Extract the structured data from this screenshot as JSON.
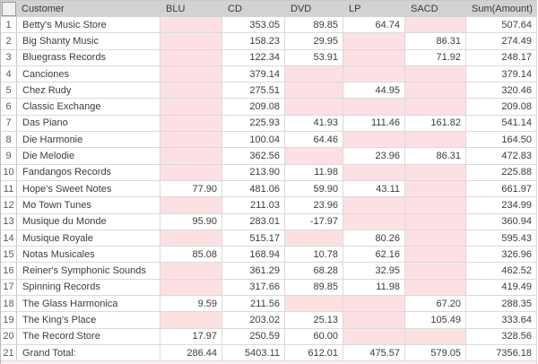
{
  "colors": {
    "header_bg": "#d2d2d2",
    "empty_cell": "#fde0e4",
    "grid_line": "#dadada"
  },
  "table": {
    "corner_label": "",
    "columns": [
      {
        "key": "customer",
        "label": "Customer"
      },
      {
        "key": "blu",
        "label": "BLU"
      },
      {
        "key": "cd",
        "label": "CD"
      },
      {
        "key": "dvd",
        "label": "DVD"
      },
      {
        "key": "lp",
        "label": "LP"
      },
      {
        "key": "sacd",
        "label": "SACD"
      },
      {
        "key": "sum",
        "label": "Sum(Amount)"
      }
    ],
    "rows": [
      {
        "num": "1",
        "customer": "Betty's Music Store",
        "blu": null,
        "cd": "353.05",
        "dvd": "89.85",
        "lp": "64.74",
        "sacd": null,
        "sum": "507.64"
      },
      {
        "num": "2",
        "customer": "Big Shanty Music",
        "blu": null,
        "cd": "158.23",
        "dvd": "29.95",
        "lp": null,
        "sacd": "86.31",
        "sum": "274.49"
      },
      {
        "num": "3",
        "customer": "Bluegrass Records",
        "blu": null,
        "cd": "122.34",
        "dvd": "53.91",
        "lp": null,
        "sacd": "71.92",
        "sum": "248.17"
      },
      {
        "num": "4",
        "customer": "Canciones",
        "blu": null,
        "cd": "379.14",
        "dvd": null,
        "lp": null,
        "sacd": null,
        "sum": "379.14"
      },
      {
        "num": "5",
        "customer": "Chez Rudy",
        "blu": null,
        "cd": "275.51",
        "dvd": null,
        "lp": "44.95",
        "sacd": null,
        "sum": "320.46"
      },
      {
        "num": "6",
        "customer": "Classic Exchange",
        "blu": null,
        "cd": "209.08",
        "dvd": null,
        "lp": null,
        "sacd": null,
        "sum": "209.08"
      },
      {
        "num": "7",
        "customer": "Das Piano",
        "blu": null,
        "cd": "225.93",
        "dvd": "41.93",
        "lp": "111.46",
        "sacd": "161.82",
        "sum": "541.14"
      },
      {
        "num": "8",
        "customer": "Die Harmonie",
        "blu": null,
        "cd": "100.04",
        "dvd": "64.46",
        "lp": null,
        "sacd": null,
        "sum": "164.50"
      },
      {
        "num": "9",
        "customer": "Die Melodie",
        "blu": null,
        "cd": "362.56",
        "dvd": null,
        "lp": "23.96",
        "sacd": "86.31",
        "sum": "472.83"
      },
      {
        "num": "10",
        "customer": "Fandangos Records",
        "blu": null,
        "cd": "213.90",
        "dvd": "11.98",
        "lp": null,
        "sacd": null,
        "sum": "225.88"
      },
      {
        "num": "11",
        "customer": "Hope's Sweet Notes",
        "blu": "77.90",
        "cd": "481.06",
        "dvd": "59.90",
        "lp": "43.11",
        "sacd": null,
        "sum": "661.97"
      },
      {
        "num": "12",
        "customer": "Mo Town Tunes",
        "blu": null,
        "cd": "211.03",
        "dvd": "23.96",
        "lp": null,
        "sacd": null,
        "sum": "234.99"
      },
      {
        "num": "13",
        "customer": "Musique du Monde",
        "blu": "95.90",
        "cd": "283.01",
        "dvd": "-17.97",
        "lp": null,
        "sacd": null,
        "sum": "360.94"
      },
      {
        "num": "14",
        "customer": "Musique Royale",
        "blu": null,
        "cd": "515.17",
        "dvd": null,
        "lp": "80.26",
        "sacd": null,
        "sum": "595.43"
      },
      {
        "num": "15",
        "customer": "Notas Musicales",
        "blu": "85.08",
        "cd": "168.94",
        "dvd": "10.78",
        "lp": "62.16",
        "sacd": null,
        "sum": "326.96"
      },
      {
        "num": "16",
        "customer": "Reiner's Symphonic Sounds",
        "blu": null,
        "cd": "361.29",
        "dvd": "68.28",
        "lp": "32.95",
        "sacd": null,
        "sum": "462.52"
      },
      {
        "num": "17",
        "customer": "Spinning Records",
        "blu": null,
        "cd": "317.66",
        "dvd": "89.85",
        "lp": "11.98",
        "sacd": null,
        "sum": "419.49"
      },
      {
        "num": "18",
        "customer": "The Glass Harmonica",
        "blu": "9.59",
        "cd": "211.56",
        "dvd": null,
        "lp": null,
        "sacd": "67.20",
        "sum": "288.35"
      },
      {
        "num": "19",
        "customer": "The King's Place",
        "blu": null,
        "cd": "203.02",
        "dvd": "25.13",
        "lp": null,
        "sacd": "105.49",
        "sum": "333.64"
      },
      {
        "num": "20",
        "customer": "The Record Store",
        "blu": "17.97",
        "cd": "250.59",
        "dvd": "60.00",
        "lp": null,
        "sacd": null,
        "sum": "328.56"
      },
      {
        "num": "21",
        "customer": "Grand Total:",
        "blu": "286.44",
        "cd": "5403.11",
        "dvd": "612.01",
        "lp": "475.57",
        "sacd": "579.05",
        "sum": "7356.18"
      }
    ]
  }
}
